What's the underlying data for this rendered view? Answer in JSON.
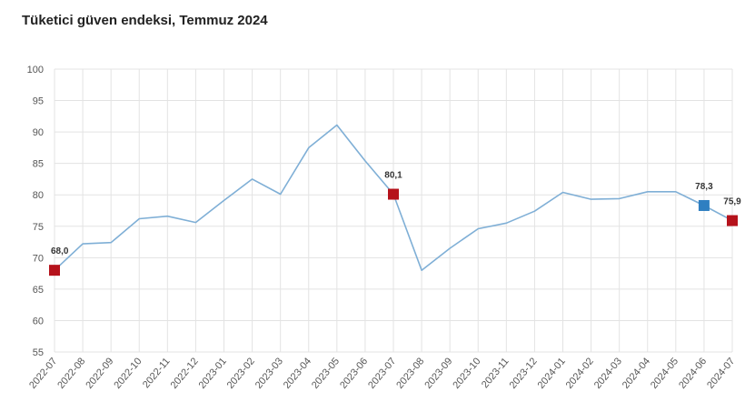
{
  "chart_data": {
    "type": "line",
    "title": "Tüketici güven endeksi, Temmuz 2024",
    "xlabel": "",
    "ylabel": "",
    "ylim": [
      55,
      100
    ],
    "yticks": [
      55,
      60,
      65,
      70,
      75,
      80,
      85,
      90,
      95,
      100
    ],
    "grid": true,
    "categories": [
      "2022-07",
      "2022-08",
      "2022-09",
      "2022-10",
      "2022-11",
      "2022-12",
      "2023-01",
      "2023-02",
      "2023-03",
      "2023-04",
      "2023-05",
      "2023-06",
      "2023-07",
      "2023-08",
      "2023-09",
      "2023-10",
      "2023-11",
      "2023-12",
      "2024-01",
      "2024-02",
      "2024-03",
      "2024-04",
      "2024-05",
      "2024-06",
      "2024-07"
    ],
    "series": [
      {
        "values": [
          68.0,
          72.2,
          72.4,
          76.2,
          76.6,
          75.6,
          79.1,
          82.5,
          80.1,
          87.5,
          91.1,
          85.4,
          80.1,
          68.0,
          71.5,
          74.6,
          75.5,
          77.4,
          80.4,
          79.3,
          79.4,
          80.5,
          80.5,
          78.3,
          75.9
        ],
        "color": "#7fafd6"
      }
    ],
    "highlights": [
      {
        "index": 0,
        "label": "68,0",
        "color": "#b5121b"
      },
      {
        "index": 12,
        "label": "80,1",
        "color": "#b5121b"
      },
      {
        "index": 23,
        "label": "78,3",
        "color": "#2f7fc1"
      },
      {
        "index": 24,
        "label": "75,9",
        "color": "#b5121b"
      }
    ],
    "grid_color": "#e3e3e3"
  }
}
